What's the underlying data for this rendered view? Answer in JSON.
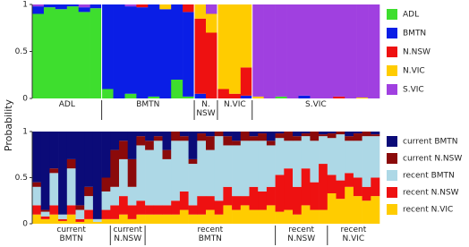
{
  "chart_data": [
    {
      "type": "stacked_bar",
      "ylabel": "Probability",
      "ylim": [
        0,
        1
      ],
      "yticks": [
        0,
        0.5,
        1
      ],
      "stack_order": "legend",
      "categories": [
        "ADL",
        null,
        null,
        null,
        null,
        null,
        "BMTN",
        null,
        null,
        null,
        null,
        null,
        null,
        null,
        "N. NSW",
        null,
        "N.VIC",
        null,
        null,
        "S.VIC",
        null,
        null,
        null,
        null,
        null,
        null,
        null,
        null,
        null,
        null
      ],
      "series": [
        {
          "name": "ADL",
          "color": "#3ede2e",
          "values": [
            0.9,
            0.97,
            0.95,
            0.98,
            0.92,
            0.96,
            0.1,
            0,
            0.05,
            0,
            0.02,
            0,
            0.2,
            0.02,
            0,
            0,
            0,
            0,
            0,
            0,
            0,
            0.02,
            0,
            0,
            0,
            0,
            0,
            0,
            0,
            0
          ]
        },
        {
          "name": "BMTN",
          "color": "#0a1ee6",
          "values": [
            0.08,
            0.03,
            0.05,
            0.02,
            0.05,
            0.04,
            0.9,
            1,
            0.93,
            0.97,
            0.98,
            0.95,
            0.8,
            0.9,
            0.05,
            0,
            0,
            0,
            0.03,
            0,
            0,
            0,
            0,
            0.03,
            0,
            0,
            0,
            0,
            0,
            0
          ]
        },
        {
          "name": "N.NSW",
          "color": "#ee1111",
          "values": [
            0,
            0,
            0,
            0,
            0,
            0,
            0,
            0,
            0,
            0.03,
            0,
            0,
            0,
            0.08,
            0.8,
            0.7,
            0.1,
            0.05,
            0.3,
            0,
            0,
            0,
            0,
            0,
            0,
            0,
            0.02,
            0,
            0,
            0
          ]
        },
        {
          "name": "N.VIC",
          "color": "#ffcc00",
          "values": [
            0,
            0,
            0,
            0,
            0,
            0,
            0,
            0,
            0,
            0,
            0,
            0.05,
            0,
            0,
            0.15,
            0.2,
            0.9,
            0.95,
            0.67,
            0.02,
            0,
            0,
            0,
            0,
            0,
            0,
            0,
            0,
            0.01,
            0
          ]
        },
        {
          "name": "S.VIC",
          "color": "#a040e0",
          "values": [
            0.02,
            0,
            0,
            0,
            0.03,
            0,
            0,
            0,
            0.02,
            0,
            0,
            0,
            0,
            0,
            0,
            0.1,
            0,
            0,
            0,
            0.98,
            1,
            0.98,
            1,
            0.97,
            1,
            1,
            0.98,
            1,
            0.99,
            1
          ]
        }
      ]
    },
    {
      "type": "stacked_bar",
      "ylim": [
        0,
        1
      ],
      "yticks": [
        0,
        0.5,
        1
      ],
      "stack_order": "reversed",
      "categories": [
        "current BMTN",
        null,
        null,
        null,
        null,
        null,
        null,
        null,
        null,
        "current N.NSW",
        null,
        null,
        null,
        "recent BMTN",
        null,
        null,
        null,
        null,
        null,
        null,
        null,
        null,
        null,
        null,
        null,
        null,
        null,
        null,
        "recent N.NSW",
        null,
        null,
        null,
        null,
        null,
        "recent N.VIC",
        null,
        null,
        null,
        null,
        null
      ],
      "series": [
        {
          "name": "current BMTN",
          "color": "#0b0b78",
          "values": [
            0.55,
            0.85,
            0.4,
            0.9,
            0.3,
            0.8,
            0.6,
            0.95,
            0.5,
            0.2,
            0.1,
            0.3,
            0.05,
            0.1,
            0.05,
            0.2,
            0,
            0.05,
            0.3,
            0.02,
            0.05,
            0,
            0.05,
            0.1,
            0,
            0.05,
            0.02,
            0.1,
            0.02,
            0,
            0.05,
            0.02,
            0,
            0.03,
            0.02,
            0,
            0.05,
            0.02,
            0,
            0.03
          ]
        },
        {
          "name": "current N.NSW",
          "color": "#8b0a0a",
          "values": [
            0.05,
            0.02,
            0.05,
            0,
            0.1,
            0.05,
            0.1,
            0,
            0.15,
            0.4,
            0.2,
            0.3,
            0.1,
            0.1,
            0.05,
            0.1,
            0.1,
            0.05,
            0.05,
            0.08,
            0.15,
            0.05,
            0.1,
            0.05,
            0.1,
            0.05,
            0.08,
            0.05,
            0.05,
            0.1,
            0.05,
            0.03,
            0.1,
            0.02,
            0.05,
            0.03,
            0.05,
            0.08,
            0.05,
            0.02
          ]
        },
        {
          "name": "recent BMTN",
          "color": "#add8e6",
          "values": [
            0.2,
            0.05,
            0.35,
            0.05,
            0.4,
            0.1,
            0.15,
            0.03,
            0.2,
            0.2,
            0.4,
            0.2,
            0.6,
            0.6,
            0.7,
            0.5,
            0.65,
            0.55,
            0.45,
            0.6,
            0.5,
            0.7,
            0.45,
            0.55,
            0.6,
            0.5,
            0.55,
            0.45,
            0.4,
            0.3,
            0.5,
            0.35,
            0.45,
            0.3,
            0.4,
            0.5,
            0.35,
            0.4,
            0.55,
            0.45
          ]
        },
        {
          "name": "recent N.NSW",
          "color": "#ee1111",
          "values": [
            0.1,
            0.03,
            0.1,
            0.02,
            0.1,
            0.03,
            0.1,
            0,
            0.1,
            0.15,
            0.2,
            0.15,
            0.15,
            0.1,
            0.1,
            0.1,
            0.15,
            0.2,
            0.1,
            0.2,
            0.15,
            0.15,
            0.2,
            0.15,
            0.1,
            0.25,
            0.2,
            0.2,
            0.4,
            0.45,
            0.3,
            0.4,
            0.3,
            0.5,
            0.2,
            0.2,
            0.15,
            0.2,
            0.15,
            0.2
          ]
        },
        {
          "name": "recent N.VIC",
          "color": "#ffcc00",
          "values": [
            0.1,
            0.05,
            0.1,
            0.03,
            0.1,
            0.02,
            0.05,
            0.02,
            0.05,
            0.05,
            0.1,
            0.05,
            0.1,
            0.1,
            0.1,
            0.1,
            0.1,
            0.15,
            0.1,
            0.1,
            0.15,
            0.1,
            0.2,
            0.15,
            0.2,
            0.15,
            0.15,
            0.2,
            0.13,
            0.15,
            0.1,
            0.2,
            0.15,
            0.15,
            0.33,
            0.27,
            0.4,
            0.3,
            0.25,
            0.3
          ]
        }
      ]
    }
  ]
}
